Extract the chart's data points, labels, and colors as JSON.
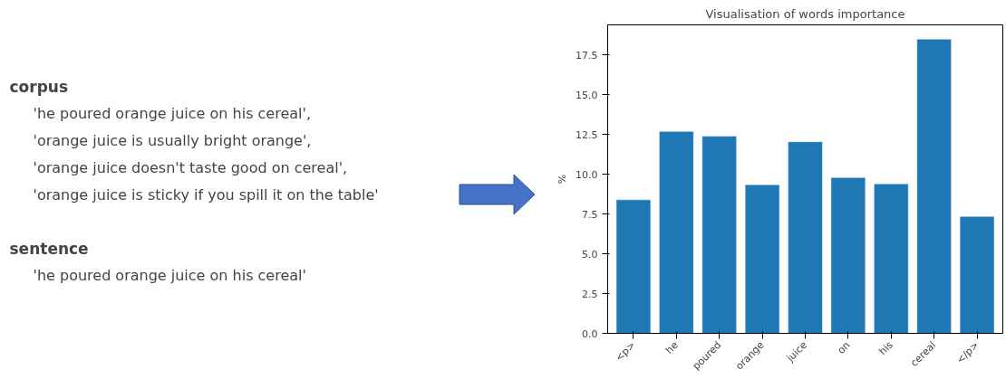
{
  "chart_data": [
    {
      "type": "other",
      "title": "corpus",
      "annotations": [
        "'he poured orange juice on his cereal',",
        "'orange juice is usually bright orange',",
        "'orange juice doesn't taste good on cereal',",
        "'orange juice is sticky if you spill it on the table'"
      ]
    },
    {
      "type": "other",
      "title": "sentence",
      "annotations": [
        "'he poured orange juice on his cereal'"
      ]
    },
    {
      "type": "bar",
      "title": "Visualisation of words importance",
      "ylabel": "%",
      "categories": [
        "<p>",
        "he",
        "poured",
        "orange",
        "juice",
        "on",
        "his",
        "cereal",
        "</p>"
      ],
      "values": [
        8.4,
        12.7,
        12.4,
        9.35,
        12.05,
        9.8,
        9.4,
        18.5,
        7.35
      ],
      "color": "#1f77b4",
      "ylim": [
        0,
        19.4
      ],
      "yticks": [
        {
          "value": 0,
          "label": "0.0"
        },
        {
          "value": 2.5,
          "label": "2.5"
        },
        {
          "value": 5,
          "label": "5.0"
        },
        {
          "value": 7.5,
          "label": "7.5"
        },
        {
          "value": 10,
          "label": "10.0"
        },
        {
          "value": 12.5,
          "label": "12.5"
        },
        {
          "value": 15,
          "label": "15.0"
        },
        {
          "value": 17.5,
          "label": "17.5"
        }
      ],
      "grid": false
    }
  ]
}
